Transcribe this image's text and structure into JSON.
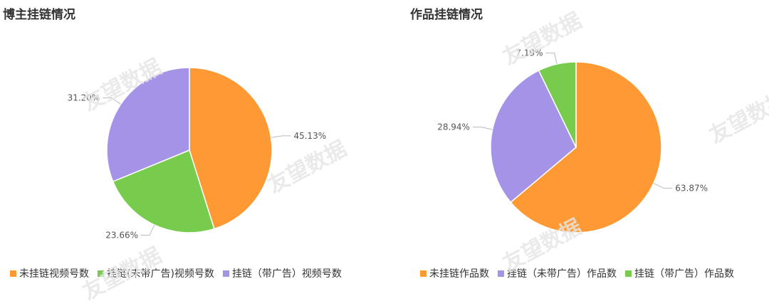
{
  "watermark": "友望数据",
  "chart_data": [
    {
      "type": "pie",
      "title": "博主挂链情况",
      "start_angle_deg": 90,
      "slices": [
        {
          "name": "未挂链视频号数",
          "value": 45.13,
          "label": "45.13%",
          "color": "#FF9933"
        },
        {
          "name": "挂链(未带广告)视频号数",
          "value": 23.66,
          "label": "23.66%",
          "color": "#77CC4D"
        },
        {
          "name": "挂链（带广告）视频号数",
          "value": 31.2,
          "label": "31.20%",
          "color": "#A593E8"
        }
      ]
    },
    {
      "type": "pie",
      "title": "作品挂链情况",
      "start_angle_deg": 90,
      "slices": [
        {
          "name": "未挂链作品数",
          "value": 63.87,
          "label": "63.87%",
          "color": "#FF9933"
        },
        {
          "name": "挂链（未带广告）作品数",
          "value": 28.94,
          "label": "28.94%",
          "color": "#A593E8"
        },
        {
          "name": "挂链（带广告）作品数",
          "value": 7.19,
          "label": "7.19%",
          "color": "#77CC4D"
        }
      ]
    }
  ]
}
